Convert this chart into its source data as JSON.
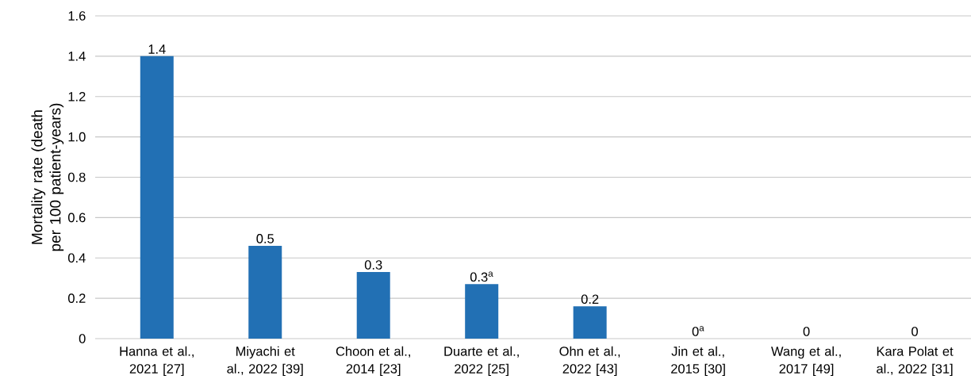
{
  "chart_data": {
    "type": "bar",
    "ylabel": "Mortality rate (death per 100 patient-years)",
    "categories": [
      "Hanna et al., 2021 [27]",
      "Miyachi et al., 2022 [39]",
      "Choon et al., 2014 [23]",
      "Duarte et al., 2022 [25]",
      "Ohn et al., 2022 [43]",
      "Jin et al., 2015 [30]",
      "Wang et al., 2017 [49]",
      "Kara Polat et al., 2022 [31]"
    ],
    "values": [
      1.4,
      0.46,
      0.33,
      0.27,
      0.16,
      0,
      0,
      0
    ],
    "value_labels": [
      "1.4",
      "0.5",
      "0.3",
      "0.3$^{a}$",
      "0.2",
      "0$^{a}$",
      "0",
      "0"
    ],
    "color": "#2270b4",
    "ylim": [
      0,
      1.6
    ],
    "yticks": [
      0,
      0.2,
      0.4,
      0.6,
      0.8,
      {
        "value": 1.0,
        "label": "1.0"
      },
      1.2,
      1.4,
      1.6
    ],
    "grid": "y"
  }
}
